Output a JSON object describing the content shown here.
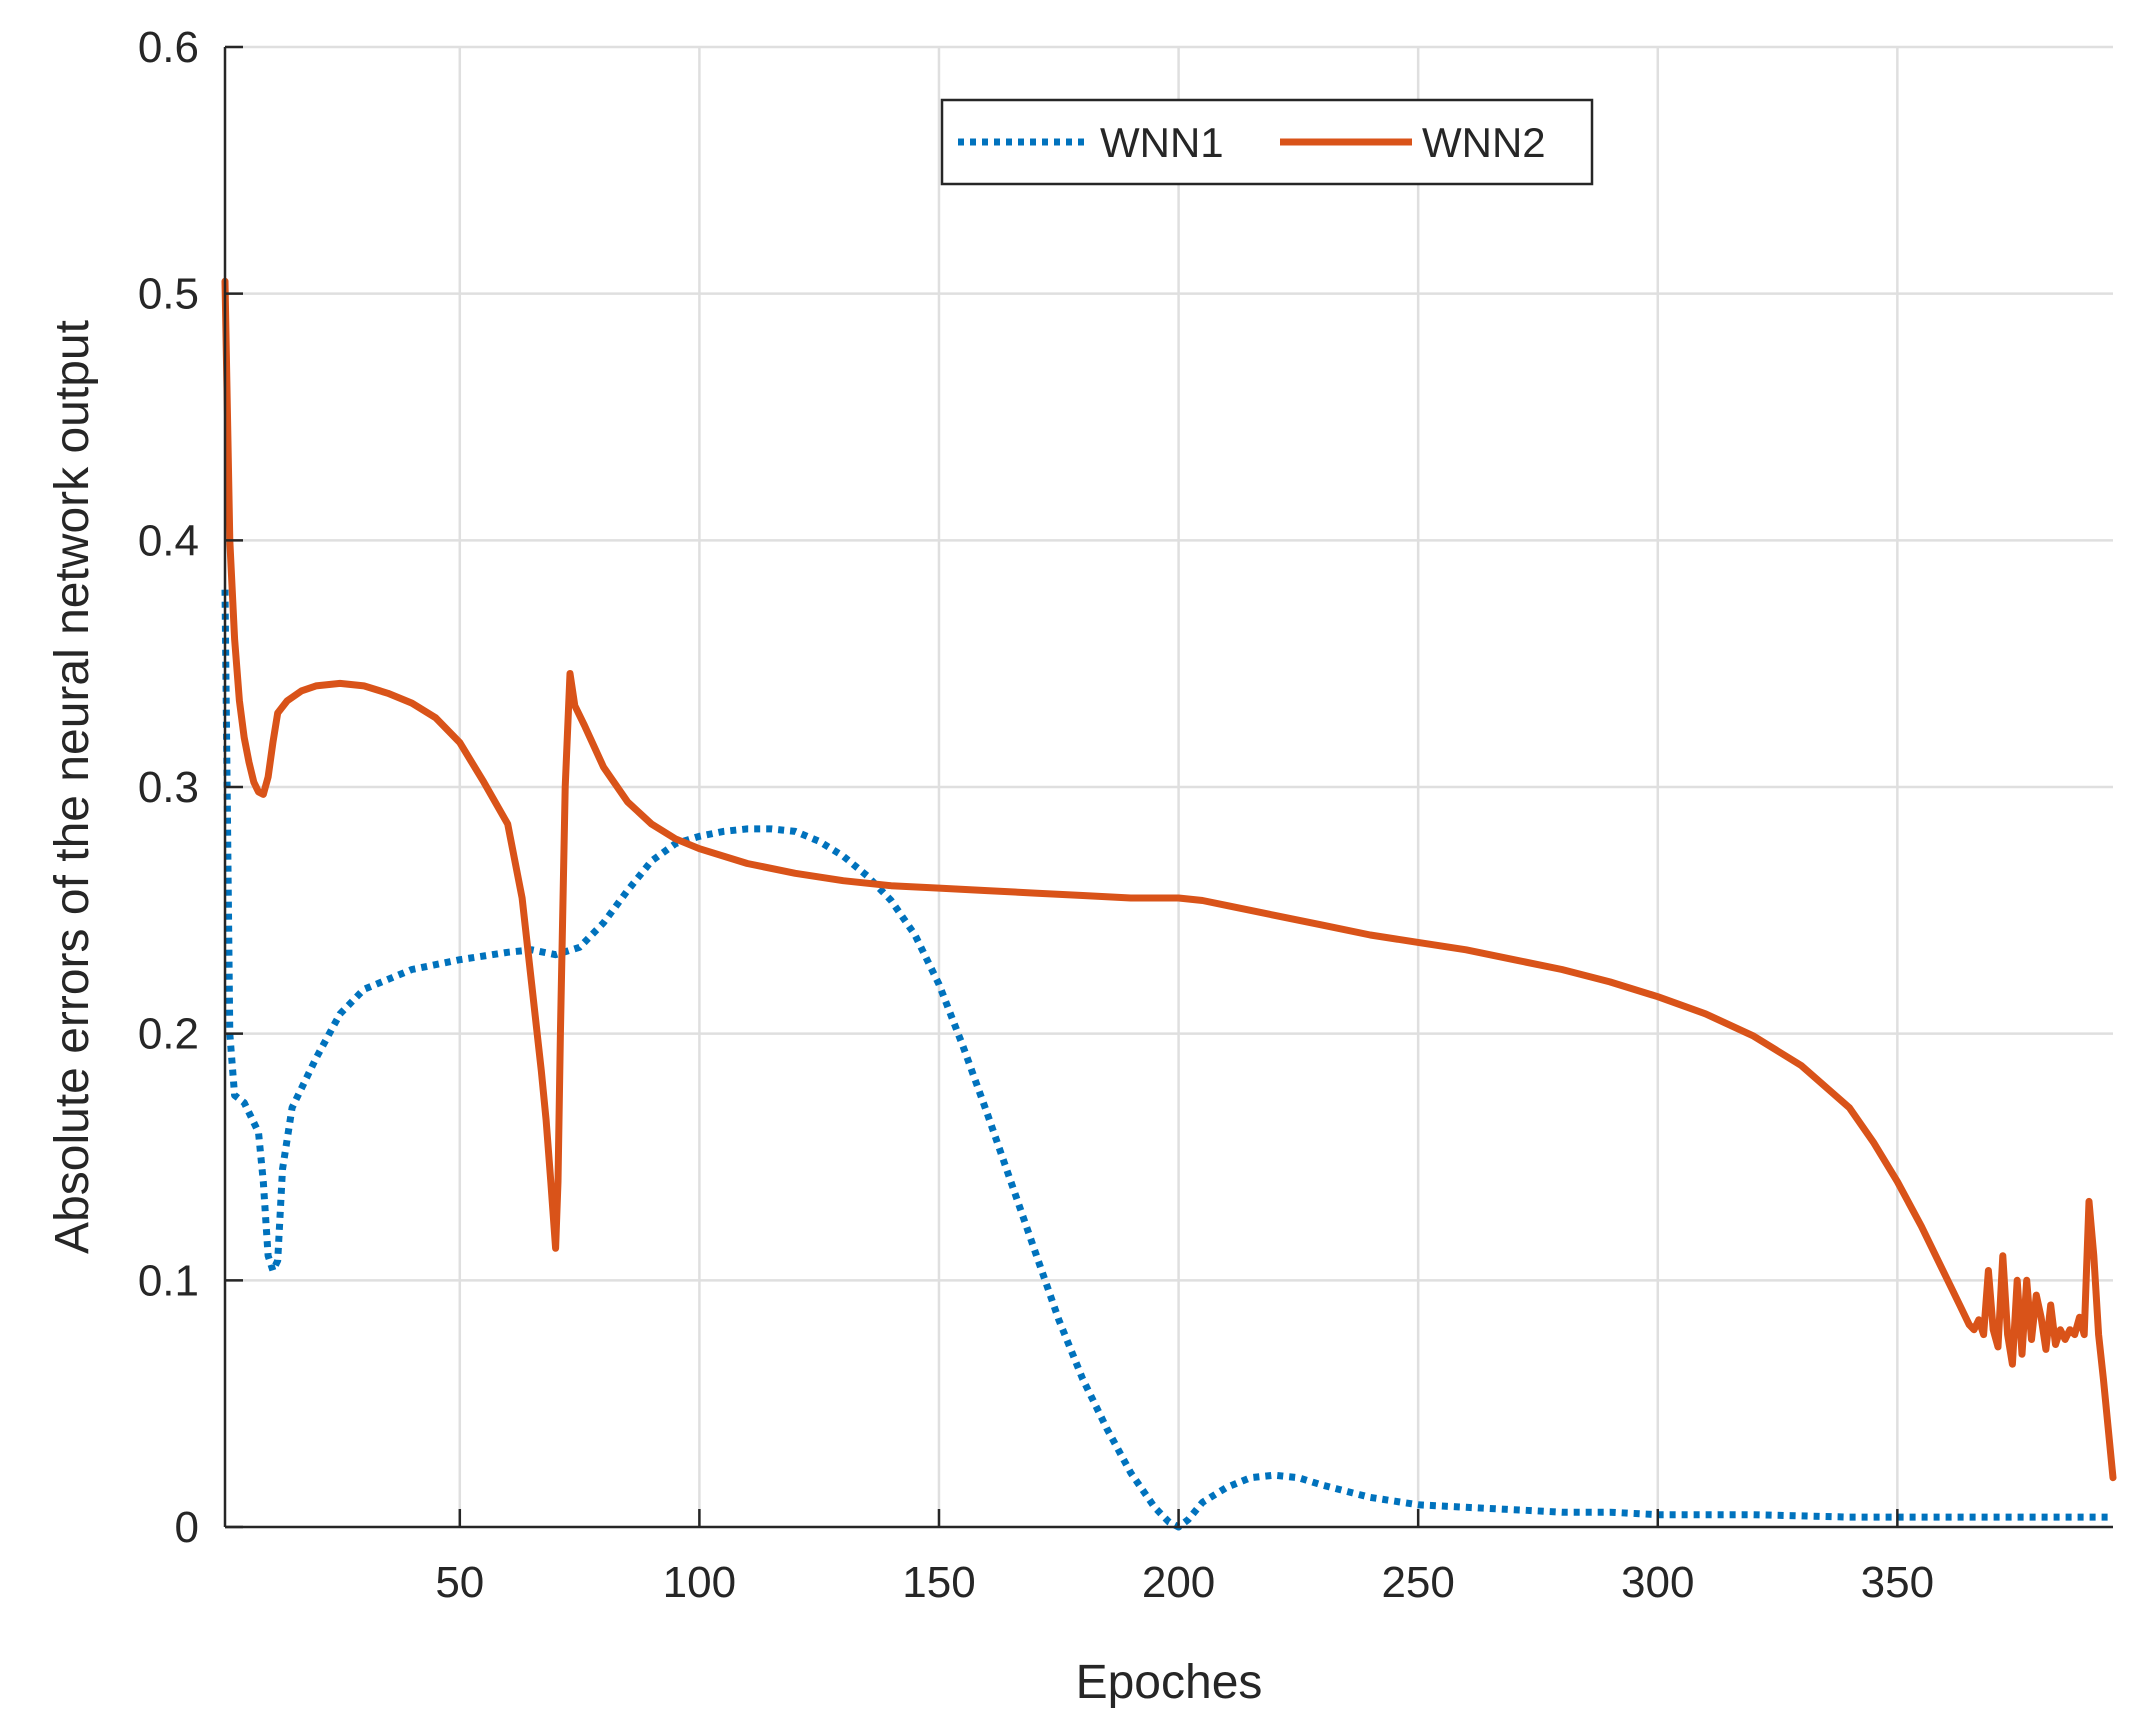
{
  "chart_data": {
    "type": "line",
    "title": "",
    "xlabel": "Epoches",
    "ylabel": "Absolute errors of the neural network output",
    "xlim": [
      1,
      395
    ],
    "ylim": [
      0,
      0.6
    ],
    "xticks": [
      50,
      100,
      150,
      200,
      250,
      300,
      350
    ],
    "xtick_labels": [
      "50",
      "100",
      "150",
      "200",
      "250",
      "300",
      "350"
    ],
    "yticks": [
      0,
      0.1,
      0.2,
      0.3,
      0.4,
      0.5,
      0.6
    ],
    "ytick_labels": [
      "0",
      "0.1",
      "0.2",
      "0.3",
      "0.4",
      "0.5",
      "0.6"
    ],
    "grid": true,
    "legend": {
      "placement": "top-center",
      "orientation": "horizontal"
    },
    "series": [
      {
        "name": "WNN1",
        "color": "#0072BD",
        "style": "dotted",
        "x": [
          1,
          2,
          3,
          5,
          6,
          8,
          9,
          10,
          11,
          12,
          13,
          15,
          20,
          25,
          30,
          40,
          50,
          60,
          65,
          70,
          75,
          80,
          85,
          90,
          95,
          100,
          105,
          110,
          115,
          120,
          125,
          130,
          135,
          140,
          145,
          150,
          155,
          160,
          165,
          170,
          175,
          180,
          185,
          190,
          195,
          198,
          200,
          202,
          205,
          210,
          215,
          220,
          225,
          230,
          240,
          250,
          260,
          270,
          280,
          290,
          300,
          320,
          340,
          360,
          380,
          395
        ],
        "y": [
          0.38,
          0.2,
          0.175,
          0.172,
          0.168,
          0.16,
          0.14,
          0.11,
          0.104,
          0.108,
          0.145,
          0.17,
          0.19,
          0.208,
          0.218,
          0.226,
          0.23,
          0.233,
          0.234,
          0.232,
          0.235,
          0.245,
          0.258,
          0.27,
          0.277,
          0.28,
          0.282,
          0.283,
          0.283,
          0.282,
          0.278,
          0.272,
          0.264,
          0.254,
          0.24,
          0.22,
          0.195,
          0.168,
          0.14,
          0.112,
          0.084,
          0.06,
          0.04,
          0.022,
          0.008,
          0.002,
          0.0,
          0.003,
          0.01,
          0.016,
          0.02,
          0.021,
          0.02,
          0.017,
          0.012,
          0.009,
          0.008,
          0.007,
          0.006,
          0.006,
          0.005,
          0.005,
          0.004,
          0.004,
          0.004,
          0.004
        ]
      },
      {
        "name": "WNN2",
        "color": "#D95319",
        "style": "solid",
        "x": [
          1,
          2,
          3,
          4,
          5,
          6,
          7,
          8,
          9,
          10,
          11,
          12,
          14,
          17,
          20,
          25,
          30,
          35,
          40,
          45,
          50,
          55,
          60,
          63,
          65,
          67,
          68,
          69,
          70,
          70.5,
          71,
          72,
          73,
          74,
          76,
          80,
          85,
          90,
          95,
          100,
          110,
          120,
          130,
          140,
          150,
          160,
          170,
          180,
          190,
          200,
          205,
          210,
          220,
          230,
          240,
          250,
          260,
          270,
          280,
          290,
          300,
          310,
          320,
          330,
          340,
          345,
          350,
          355,
          360,
          363,
          365,
          366,
          367,
          368,
          369,
          370,
          371,
          372,
          373,
          374,
          375,
          376,
          377,
          378,
          379,
          380,
          381,
          382,
          383,
          384,
          385,
          386,
          387,
          388,
          389,
          390,
          391,
          392,
          393,
          394,
          395
        ],
        "y": [
          0.505,
          0.4,
          0.36,
          0.335,
          0.32,
          0.31,
          0.302,
          0.298,
          0.297,
          0.304,
          0.318,
          0.33,
          0.335,
          0.339,
          0.341,
          0.342,
          0.341,
          0.338,
          0.334,
          0.328,
          0.318,
          0.302,
          0.285,
          0.255,
          0.22,
          0.185,
          0.165,
          0.14,
          0.113,
          0.14,
          0.2,
          0.3,
          0.346,
          0.333,
          0.325,
          0.308,
          0.294,
          0.285,
          0.279,
          0.275,
          0.269,
          0.265,
          0.262,
          0.26,
          0.259,
          0.258,
          0.257,
          0.256,
          0.255,
          0.255,
          0.254,
          0.252,
          0.248,
          0.244,
          0.24,
          0.237,
          0.234,
          0.23,
          0.226,
          0.221,
          0.215,
          0.208,
          0.199,
          0.187,
          0.17,
          0.156,
          0.14,
          0.122,
          0.102,
          0.09,
          0.082,
          0.08,
          0.084,
          0.078,
          0.104,
          0.08,
          0.073,
          0.11,
          0.078,
          0.066,
          0.1,
          0.07,
          0.1,
          0.076,
          0.094,
          0.085,
          0.072,
          0.09,
          0.074,
          0.08,
          0.076,
          0.08,
          0.078,
          0.085,
          0.078,
          0.132,
          0.11,
          0.078,
          0.06,
          0.04,
          0.02
        ]
      }
    ]
  }
}
